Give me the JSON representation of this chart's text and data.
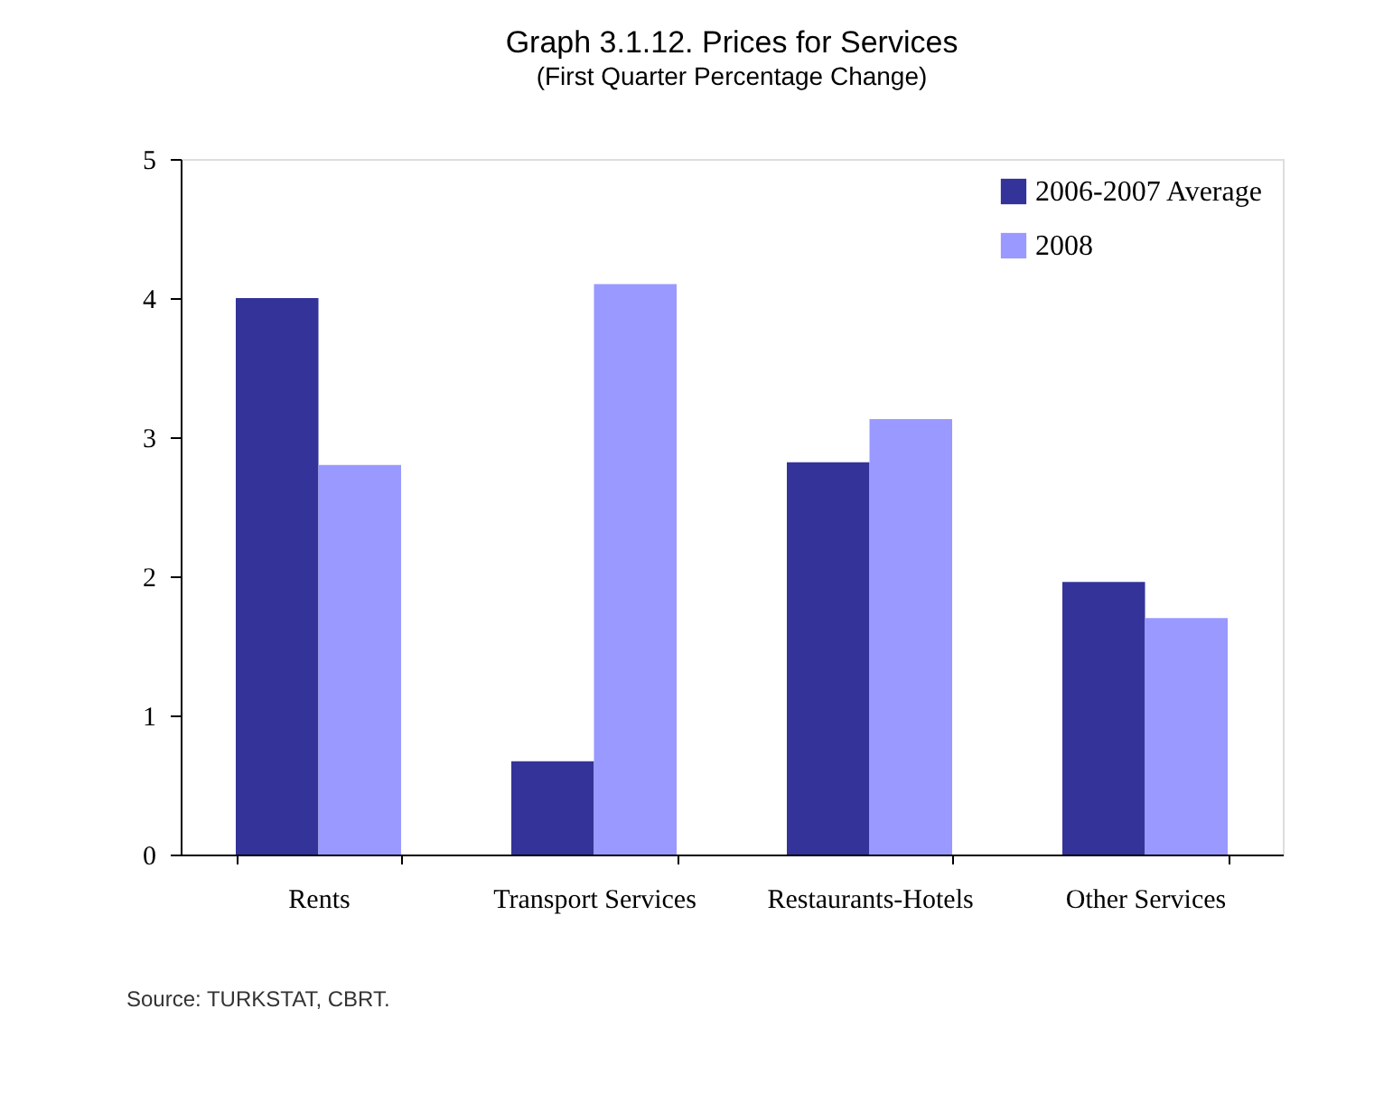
{
  "chart_data": {
    "type": "bar",
    "title": "Graph 3.1.12. Prices for Services",
    "subtitle": "(First Quarter Percentage Change)",
    "categories": [
      "Rents",
      "Transport Services",
      "Restaurants-Hotels",
      "Other Services"
    ],
    "series": [
      {
        "name": "2006-2007 Average",
        "color": "#333399",
        "values": [
          4.0,
          0.67,
          2.82,
          1.96
        ]
      },
      {
        "name": "2008",
        "color": "#9999ff",
        "values": [
          2.8,
          4.1,
          3.13,
          1.7
        ]
      }
    ],
    "ylim": [
      0,
      5
    ],
    "yticks": [
      0,
      1,
      2,
      3,
      4,
      5
    ],
    "grid": false,
    "legend": "top right",
    "annotations": [
      "Source: TURKSTAT, CBRT."
    ]
  }
}
